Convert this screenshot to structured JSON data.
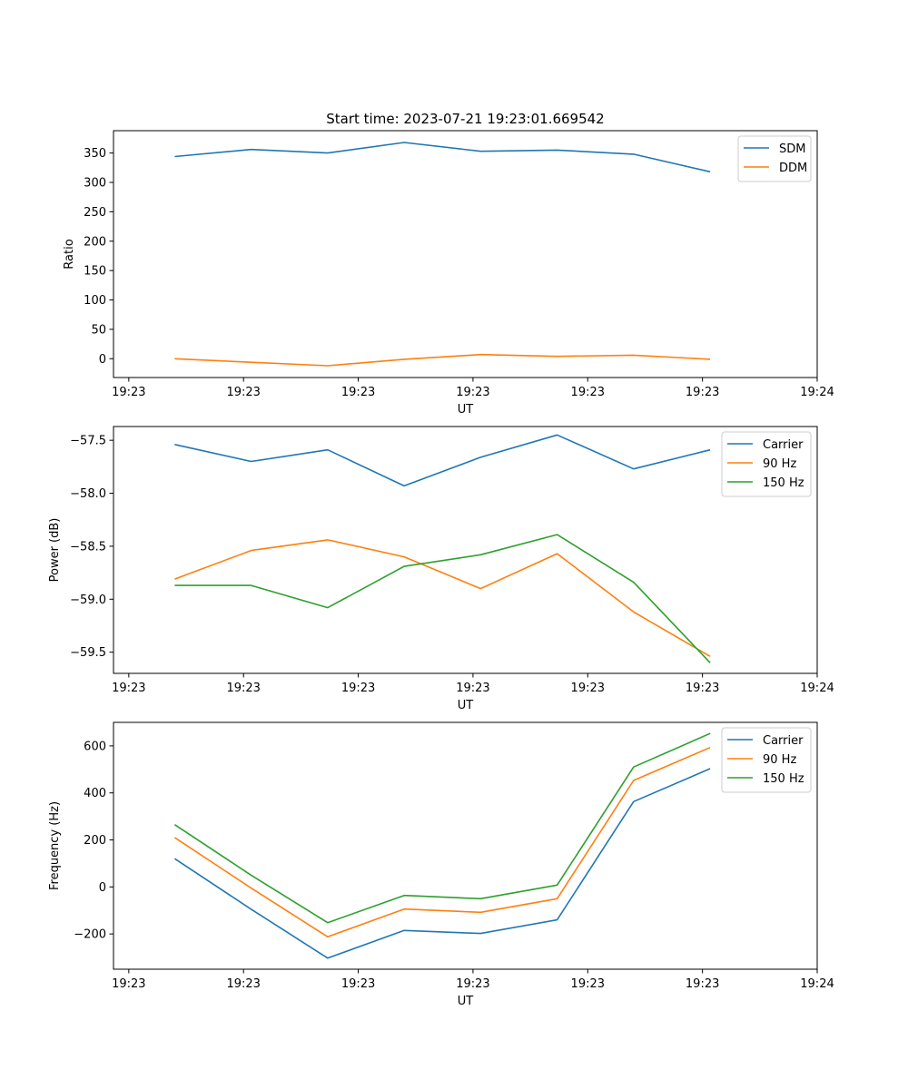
{
  "figure": {
    "title": "Start time: 2023-07-21 19:23:01.669542"
  },
  "chart_data": [
    {
      "type": "line",
      "title": "Start time: 2023-07-21 19:23:01.669542",
      "xlabel": "UT",
      "ylabel": "Ratio",
      "x": [
        1,
        2,
        3,
        4,
        5,
        6,
        7,
        8
      ],
      "xlim": [
        0.2,
        9.4
      ],
      "xticks": [
        0.4,
        1.9,
        3.4,
        4.9,
        6.4,
        7.9,
        9.4
      ],
      "xtick_labels": [
        "19:23",
        "19:23",
        "19:23",
        "19:23",
        "19:23",
        "19:23",
        "19:24"
      ],
      "ylim": [
        -32,
        388
      ],
      "yticks": [
        0,
        50,
        100,
        150,
        200,
        250,
        300,
        350
      ],
      "ytick_labels": [
        "0",
        "50",
        "100",
        "150",
        "200",
        "250",
        "300",
        "350"
      ],
      "legend_position": "top-right",
      "grid": false,
      "series": [
        {
          "name": "SDM",
          "color": "#1f77b4",
          "values": [
            344,
            356,
            350,
            368,
            353,
            355,
            348,
            318
          ]
        },
        {
          "name": "DDM",
          "color": "#ff7f0e",
          "values": [
            0,
            -6,
            -12,
            -1,
            7,
            4,
            6,
            -1
          ]
        }
      ]
    },
    {
      "type": "line",
      "title": "",
      "xlabel": "UT",
      "ylabel": "Power (dB)",
      "x": [
        1,
        2,
        3,
        4,
        5,
        6,
        7,
        8
      ],
      "xlim": [
        0.2,
        9.4
      ],
      "xticks": [
        0.4,
        1.9,
        3.4,
        4.9,
        6.4,
        7.9,
        9.4
      ],
      "xtick_labels": [
        "19:23",
        "19:23",
        "19:23",
        "19:23",
        "19:23",
        "19:23",
        "19:24"
      ],
      "ylim": [
        -59.7,
        -57.37
      ],
      "yticks": [
        -59.5,
        -59.0,
        -58.5,
        -58.0,
        -57.5
      ],
      "ytick_labels": [
        "−59.5",
        "−59.0",
        "−58.5",
        "−58.0",
        "−57.5"
      ],
      "legend_position": "top-right",
      "grid": false,
      "series": [
        {
          "name": "Carrier",
          "color": "#1f77b4",
          "values": [
            -57.54,
            -57.7,
            -57.59,
            -57.93,
            -57.66,
            -57.45,
            -57.77,
            -57.59
          ]
        },
        {
          "name": "90 Hz",
          "color": "#ff7f0e",
          "values": [
            -58.81,
            -58.54,
            -58.44,
            -58.6,
            -58.9,
            -58.57,
            -59.12,
            -59.54
          ]
        },
        {
          "name": "150 Hz",
          "color": "#2ca02c",
          "values": [
            -58.87,
            -58.87,
            -59.08,
            -58.69,
            -58.58,
            -58.39,
            -58.84,
            -59.6
          ]
        }
      ]
    },
    {
      "type": "line",
      "title": "",
      "xlabel": "UT",
      "ylabel": "Frequency (Hz)",
      "x": [
        1,
        2,
        3,
        4,
        5,
        6,
        7,
        8
      ],
      "xlim": [
        0.2,
        9.4
      ],
      "xticks": [
        0.4,
        1.9,
        3.4,
        4.9,
        6.4,
        7.9,
        9.4
      ],
      "xtick_labels": [
        "19:23",
        "19:23",
        "19:23",
        "19:23",
        "19:23",
        "19:23",
        "19:24"
      ],
      "ylim": [
        -350,
        700
      ],
      "yticks": [
        -200,
        0,
        200,
        400,
        600
      ],
      "ytick_labels": [
        "−200",
        "0",
        "200",
        "400",
        "600"
      ],
      "legend_position": "top-right",
      "grid": false,
      "series": [
        {
          "name": "Carrier",
          "color": "#1f77b4",
          "values": [
            120,
            -95,
            -303,
            -185,
            -198,
            -140,
            363,
            503
          ]
        },
        {
          "name": "90 Hz",
          "color": "#ff7f0e",
          "values": [
            210,
            -5,
            -212,
            -94,
            -108,
            -50,
            453,
            593
          ]
        },
        {
          "name": "150 Hz",
          "color": "#2ca02c",
          "values": [
            265,
            50,
            -152,
            -36,
            -50,
            8,
            510,
            653
          ]
        }
      ]
    }
  ]
}
